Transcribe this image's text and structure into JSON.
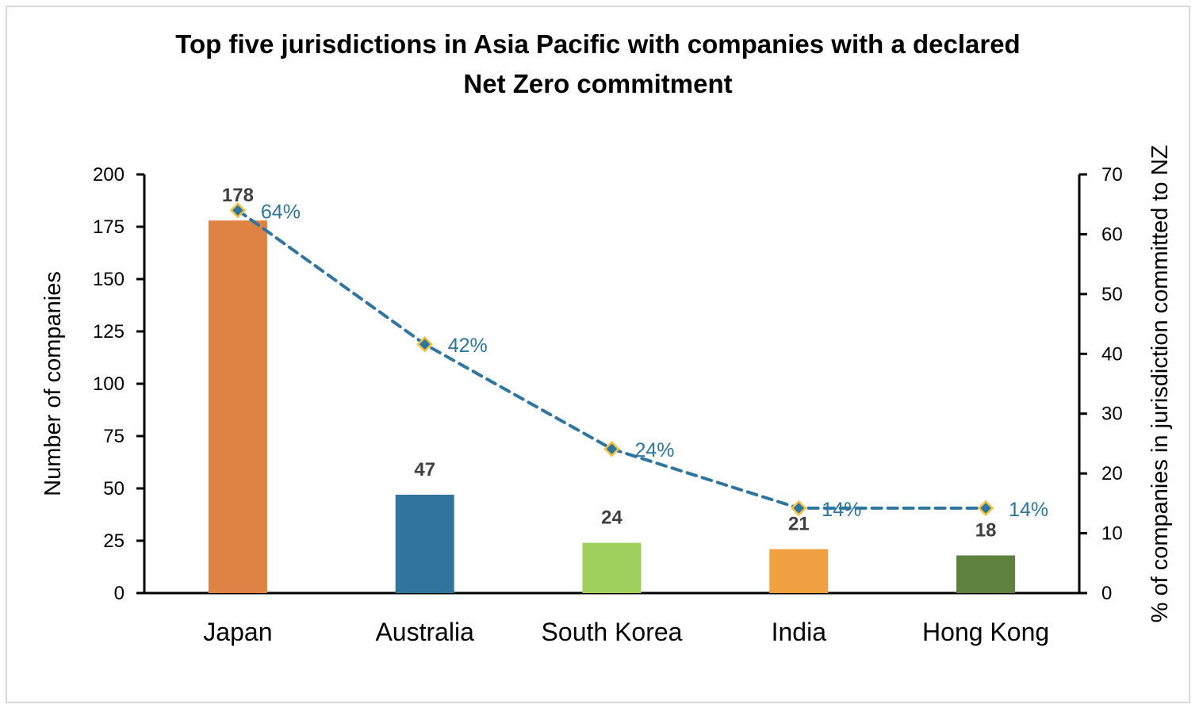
{
  "chart_data": {
    "type": "bar+line",
    "title": "Top five jurisdictions in Asia Pacific with companies with a declared Net Zero commitment",
    "title_lines": [
      "Top five jurisdictions in Asia Pacific with companies with a declared",
      "Net Zero commitment"
    ],
    "categories": [
      "Japan",
      "Australia",
      "South Korea",
      "India",
      "Hong Kong"
    ],
    "bars": {
      "values": [
        178,
        47,
        24,
        21,
        18
      ],
      "labels": [
        "178",
        "47",
        "24",
        "21",
        "18"
      ],
      "colors": [
        "#df8344",
        "#31759c",
        "#9fd05d",
        "#f2a142",
        "#5e8140"
      ]
    },
    "line": {
      "values": [
        64,
        41.6,
        24.1,
        14.2,
        14.2
      ],
      "labels": [
        "64%",
        "42%",
        "24%",
        "14%",
        "14%"
      ],
      "color": "#2e75a0",
      "marker_edge": "#f5c242",
      "style": "dashed"
    },
    "ylabel": "Number of companies",
    "ylim": [
      0,
      200
    ],
    "yticks": [
      "0",
      "25",
      "50",
      "75",
      "100",
      "125",
      "150",
      "175",
      "200"
    ],
    "y2label": "% of companies in jurisdiction committed to NZ",
    "y2lim": [
      0,
      70
    ],
    "y2ticks": [
      "0",
      "10",
      "20",
      "30",
      "40",
      "50",
      "60",
      "70"
    ],
    "grid": false,
    "legend": "none"
  }
}
